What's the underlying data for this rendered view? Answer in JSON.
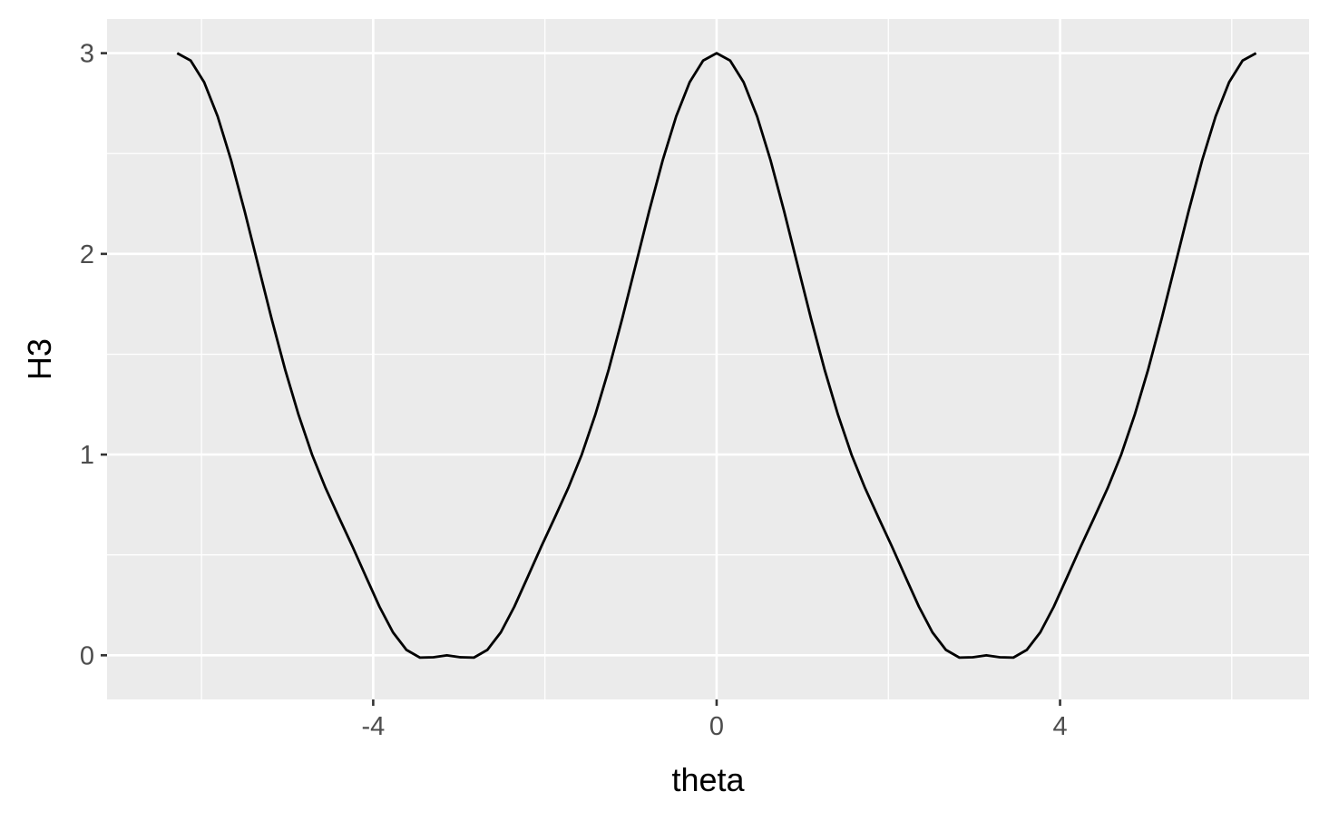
{
  "chart_data": {
    "type": "line",
    "title": "",
    "xlabel": "theta",
    "ylabel": "H3",
    "xlim": [
      -7.1,
      6.9
    ],
    "ylim": [
      -0.22,
      3.17
    ],
    "x_ticks": [
      -4,
      0,
      4
    ],
    "x_tick_labels": [
      "-4",
      "0",
      "4"
    ],
    "x_minor_ticks": [
      -6,
      -2,
      2,
      6
    ],
    "y_ticks": [
      0,
      1,
      2,
      3
    ],
    "y_tick_labels": [
      "0",
      "1",
      "2",
      "3"
    ],
    "y_minor_ticks": [
      0.5,
      1.5,
      2.5
    ],
    "grid": true,
    "legend": "none",
    "colors": {
      "panel_background": "#EBEBEB",
      "gridline": "#FFFFFF",
      "line": "#000000",
      "tick_label": "#4D4D4D",
      "axis_title": "#000000"
    },
    "series": [
      {
        "x": [
          -6.2832,
          -6.1261,
          -5.969,
          -5.8119,
          -5.6549,
          -5.4978,
          -5.3407,
          -5.1836,
          -5.0265,
          -4.8695,
          -4.7124,
          -4.5553,
          -4.3982,
          -4.2412,
          -4.0841,
          -3.927,
          -3.7699,
          -3.6128,
          -3.4558,
          -3.2987,
          -3.1416,
          -2.9845,
          -2.8274,
          -2.6704,
          -2.5133,
          -2.3562,
          -2.1991,
          -2.042,
          -1.885,
          -1.7279,
          -1.5708,
          -1.4137,
          -1.2566,
          -1.0996,
          -0.9425,
          -0.7854,
          -0.6283,
          -0.4712,
          -0.3142,
          -0.1571,
          0.0,
          0.1571,
          0.3142,
          0.4712,
          0.6283,
          0.7854,
          0.9425,
          1.0996,
          1.2566,
          1.4137,
          1.5708,
          1.7279,
          1.885,
          2.042,
          2.1991,
          2.3562,
          2.5133,
          2.6704,
          2.8274,
          2.9845,
          3.1416,
          3.2987,
          3.4558,
          3.6128,
          3.7699,
          3.927,
          4.0841,
          4.2412,
          4.3982,
          4.5553,
          4.7124,
          4.8695,
          5.0265,
          5.1836,
          5.3407,
          5.4978,
          5.6549,
          5.8119,
          5.969,
          6.1261,
          6.2832
        ],
        "y": [
          3.0,
          2.9631,
          2.8553,
          2.6852,
          2.4659,
          2.2134,
          1.9448,
          1.6773,
          1.4245,
          1.1983,
          1.0,
          0.8339,
          0.6863,
          0.5419,
          0.3913,
          0.2422,
          0.1145,
          0.0269,
          -0.0115,
          -0.0098,
          0.0,
          -0.0098,
          -0.0115,
          0.0269,
          0.1145,
          0.2422,
          0.3913,
          0.5419,
          0.6863,
          0.8339,
          1.0,
          1.1983,
          1.4245,
          1.6773,
          1.9448,
          2.2134,
          2.4659,
          2.6852,
          2.8553,
          2.9631,
          3.0,
          2.9631,
          2.8553,
          2.6852,
          2.4659,
          2.2134,
          1.9448,
          1.6773,
          1.4245,
          1.1983,
          1.0,
          0.8339,
          0.6863,
          0.5419,
          0.3913,
          0.2422,
          0.1145,
          0.0269,
          -0.0115,
          -0.0098,
          0.0,
          -0.0098,
          -0.0115,
          0.0269,
          0.1145,
          0.2422,
          0.3913,
          0.5419,
          0.6863,
          0.8339,
          1.0,
          1.1983,
          1.4245,
          1.6773,
          1.9448,
          2.2134,
          2.4659,
          2.6852,
          2.8553,
          2.9631,
          3.0
        ]
      }
    ]
  }
}
